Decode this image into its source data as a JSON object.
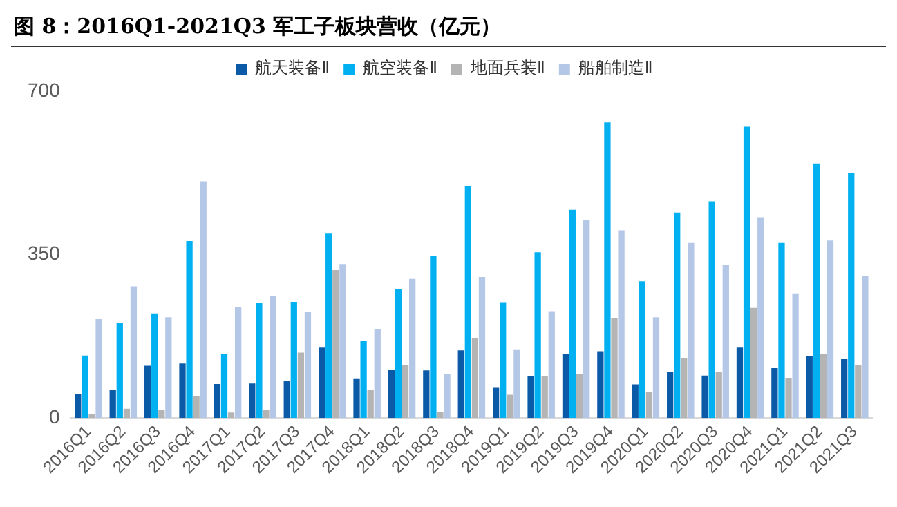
{
  "chart_data": {
    "type": "bar",
    "title": "图 8：2016Q1-2021Q3 军工子板块营收（亿元）",
    "categories": [
      "2016Q1",
      "2016Q2",
      "2016Q3",
      "2016Q4",
      "2017Q1",
      "2017Q2",
      "2017Q3",
      "2017Q4",
      "2018Q1",
      "2018Q2",
      "2018Q3",
      "2018Q4",
      "2019Q1",
      "2019Q2",
      "2019Q3",
      "2019Q4",
      "2020Q1",
      "2020Q2",
      "2020Q3",
      "2020Q4",
      "2021Q1",
      "2021Q2",
      "2021Q3"
    ],
    "series": [
      {
        "name": "航天装备Ⅱ",
        "color": "#0a5aa8",
        "values": [
          52,
          60,
          112,
          117,
          73,
          74,
          79,
          151,
          85,
          103,
          102,
          145,
          66,
          90,
          138,
          143,
          72,
          98,
          91,
          151,
          107,
          133,
          126
        ]
      },
      {
        "name": "航空装备Ⅱ",
        "color": "#00b0f0",
        "values": [
          134,
          203,
          224,
          379,
          137,
          246,
          249,
          395,
          166,
          276,
          348,
          497,
          248,
          355,
          446,
          633,
          293,
          440,
          464,
          624,
          375,
          545,
          524
        ]
      },
      {
        "name": "地面兵装Ⅱ",
        "color": "#b4b4b4",
        "values": [
          9,
          20,
          18,
          47,
          12,
          18,
          140,
          317,
          60,
          113,
          13,
          171,
          50,
          89,
          94,
          215,
          55,
          128,
          99,
          236,
          86,
          138,
          113
        ]
      },
      {
        "name": "船舶制造Ⅱ",
        "color": "#b4c7e7",
        "values": [
          212,
          282,
          216,
          507,
          238,
          262,
          227,
          330,
          190,
          298,
          94,
          302,
          147,
          229,
          425,
          402,
          216,
          375,
          328,
          430,
          267,
          380,
          304
        ]
      }
    ],
    "ylim": [
      0,
      700
    ],
    "yticks": [
      0,
      350,
      700
    ],
    "grid": false,
    "legend": "top"
  }
}
